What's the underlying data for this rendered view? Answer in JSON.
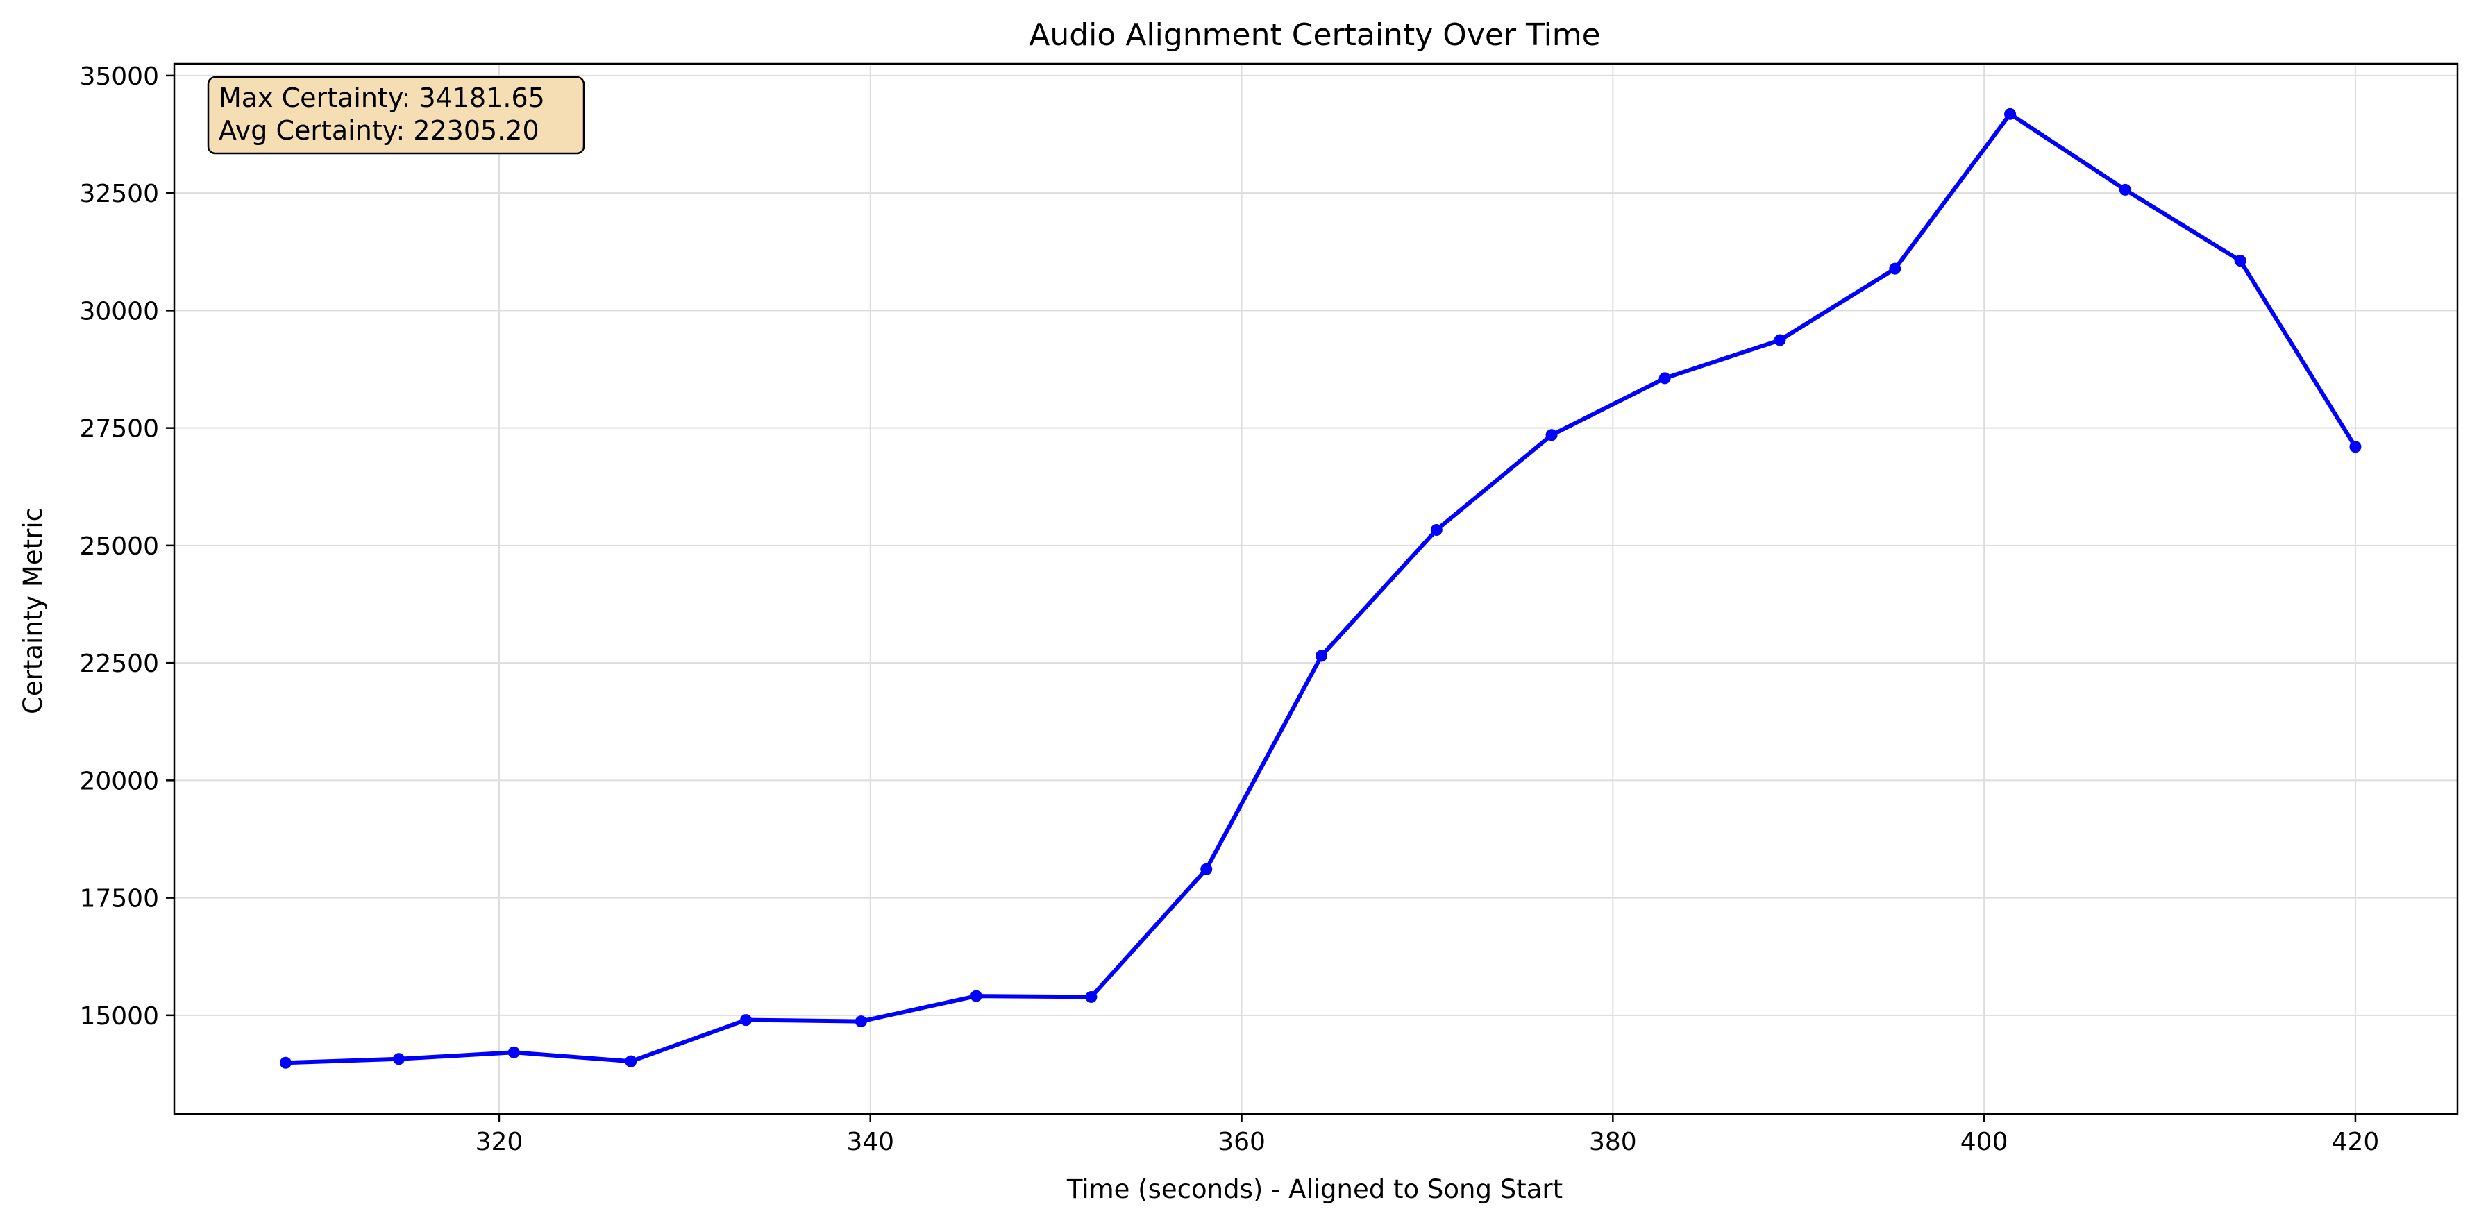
{
  "chart_data": {
    "type": "line",
    "title": "Audio Alignment Certainty Over Time",
    "xlabel": "Time (seconds) - Aligned to Song Start",
    "ylabel": "Certainty Metric",
    "xlim": [
      302.5,
      425.5
    ],
    "ylim": [
      12900,
      35250
    ],
    "xticks": [
      320,
      340,
      360,
      380,
      400,
      420
    ],
    "yticks": [
      15000,
      17500,
      20000,
      22500,
      25000,
      27500,
      30000,
      32500,
      35000
    ],
    "grid": true,
    "line_color": "#0000ff",
    "series": [
      {
        "x": [
          308.5,
          314.6,
          320.8,
          327.1,
          333.3,
          339.5,
          345.7,
          351.9,
          358.1,
          364.3,
          370.5,
          376.7,
          382.8,
          389.0,
          395.2,
          401.4,
          407.6,
          413.8,
          420.0
        ],
        "values": [
          13990,
          14070,
          14210,
          14020,
          14900,
          14870,
          15410,
          15390,
          18110,
          22650,
          25330,
          27350,
          28560,
          29370,
          30890,
          34181.65,
          32570,
          31060,
          27100
        ]
      }
    ],
    "annotation": {
      "max_text": "Max Certainty: 34181.65",
      "avg_text": "Avg Certainty: 22305.20",
      "background": "#f5deb3"
    }
  }
}
